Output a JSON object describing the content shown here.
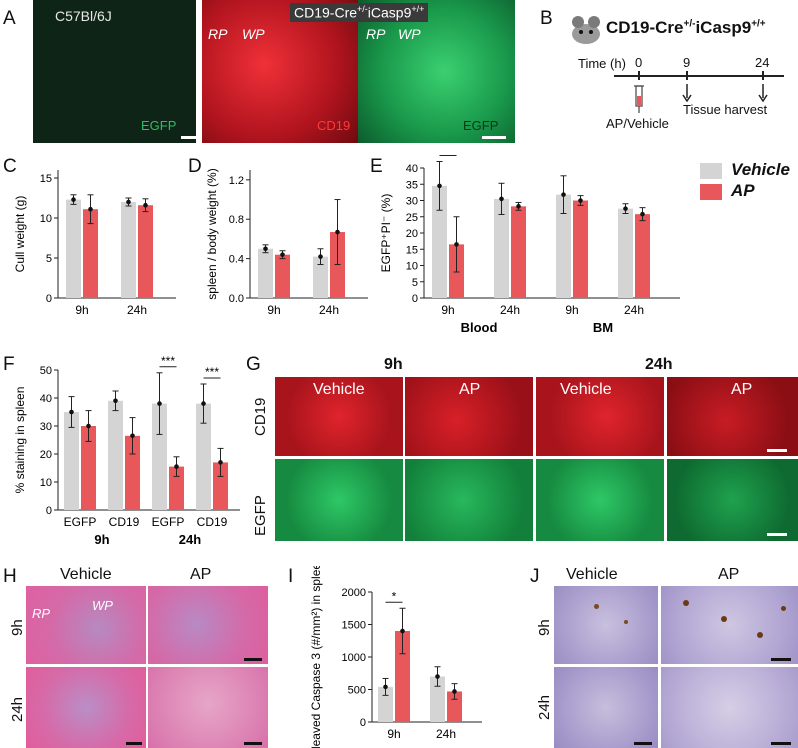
{
  "panel_letters": {
    "A": "A",
    "B": "B",
    "C": "C",
    "D": "D",
    "E": "E",
    "F": "F",
    "G": "G",
    "H": "H",
    "I": "I",
    "J": "J"
  },
  "panelA": {
    "label1": "C57Bl/6J",
    "label2_prefix": "CD19-Cre",
    "label2_sup1": "+/-",
    "label2_mid": "iCasp9",
    "label2_sup2": "+/+",
    "rp": "RP",
    "wp": "WP",
    "egfp": "EGFP",
    "cd19": "CD19",
    "colors": {
      "dark_green": "#0d2315",
      "red": "#c8202a",
      "green": "#1c9a4e"
    }
  },
  "panelB": {
    "title_prefix": "CD19-Cre",
    "title_sup1": "+/-",
    "title_mid": "iCasp9",
    "title_sup2": "+/+",
    "time_label": "Time (h)",
    "ticks": [
      "0",
      "9",
      "24"
    ],
    "treatment": "AP/Vehicle",
    "harvest": "Tissue harvest"
  },
  "legend": {
    "vehicle": "Vehicle",
    "ap": "AP",
    "vehicle_color": "#d4d4d4",
    "ap_color": "#e8585b"
  },
  "chart_data": [
    {
      "id": "C",
      "type": "bar",
      "ylabel": "Cull weight  (g)",
      "ylim": [
        0,
        16
      ],
      "yticks": [
        "0",
        "5",
        "10",
        "15"
      ],
      "categories": [
        "9h",
        "24h"
      ],
      "series": [
        {
          "name": "Vehicle",
          "values": [
            12.3,
            12.0
          ],
          "err": [
            0.6,
            0.5
          ]
        },
        {
          "name": "AP",
          "values": [
            11.1,
            11.6
          ],
          "err": [
            1.8,
            0.8
          ]
        }
      ]
    },
    {
      "id": "D",
      "type": "bar",
      "ylabel": "spleen / body weight (%)",
      "ylim": [
        0,
        1.3
      ],
      "yticks": [
        "0.0",
        "0.4",
        "0.8",
        "1.2"
      ],
      "categories": [
        "9h",
        "24h"
      ],
      "series": [
        {
          "name": "Vehicle",
          "values": [
            0.5,
            0.42
          ],
          "err": [
            0.04,
            0.08
          ]
        },
        {
          "name": "AP",
          "values": [
            0.44,
            0.67
          ],
          "err": [
            0.04,
            0.33
          ]
        }
      ]
    },
    {
      "id": "E",
      "type": "bar",
      "ylabel": "EGFP⁺PI⁻ (%)",
      "ylim": [
        0,
        40
      ],
      "yticks": [
        "0",
        "5",
        "10",
        "15",
        "20",
        "25",
        "30",
        "35",
        "40"
      ],
      "categories": [
        "9h",
        "24h",
        "9h",
        "24h"
      ],
      "groups": [
        "Blood",
        "BM"
      ],
      "series": [
        {
          "name": "Vehicle",
          "values": [
            34.5,
            30.5,
            31.8,
            27.5
          ],
          "err": [
            7.5,
            4.8,
            5.8,
            1.5
          ]
        },
        {
          "name": "AP",
          "values": [
            16.5,
            28.2,
            30.0,
            25.8
          ],
          "err": [
            8.5,
            1.2,
            1.5,
            2.0
          ]
        }
      ],
      "significance": [
        {
          "category": "9h",
          "text": "***"
        }
      ]
    },
    {
      "id": "F",
      "type": "bar",
      "ylabel": "% staining in spleen",
      "ylim": [
        0,
        50
      ],
      "yticks": [
        "0",
        "10",
        "20",
        "30",
        "40",
        "50"
      ],
      "categories": [
        "EGFP",
        "CD19",
        "EGFP",
        "CD19"
      ],
      "groups": [
        "9h",
        "24h"
      ],
      "series": [
        {
          "name": "Vehicle",
          "values": [
            35,
            39,
            38,
            38
          ],
          "err": [
            5.5,
            3.5,
            11,
            7
          ]
        },
        {
          "name": "AP",
          "values": [
            30,
            26.5,
            15.5,
            17
          ],
          "err": [
            5.5,
            6.5,
            3.5,
            5
          ]
        }
      ],
      "significance": [
        {
          "category": "EGFP-24h",
          "text": "***"
        },
        {
          "category": "CD19-24h",
          "text": "***"
        }
      ]
    },
    {
      "id": "I",
      "type": "bar",
      "ylabel": "Cleaved Caspase 3 (#/mm²) in  spleen",
      "ylim": [
        0,
        2000
      ],
      "yticks": [
        "0",
        "500",
        "1000",
        "1500",
        "2000"
      ],
      "categories": [
        "9h",
        "24h"
      ],
      "series": [
        {
          "name": "Vehicle",
          "values": [
            540,
            700
          ],
          "err": [
            130,
            150
          ]
        },
        {
          "name": "AP",
          "values": [
            1400,
            470
          ],
          "err": [
            350,
            120
          ]
        }
      ],
      "significance": [
        {
          "category": "9h",
          "text": "*"
        }
      ]
    }
  ],
  "panelG": {
    "t9": "9h",
    "t24": "24h",
    "vehicle": "Vehicle",
    "ap": "AP",
    "cd19": "CD19",
    "egfp": "EGFP"
  },
  "panelH": {
    "vehicle": "Vehicle",
    "ap": "AP",
    "t9": "9h",
    "t24": "24h",
    "rp": "RP",
    "wp": "WP"
  },
  "panelJ": {
    "vehicle": "Vehicle",
    "ap": "AP",
    "t9": "9h",
    "t24": "24h"
  }
}
